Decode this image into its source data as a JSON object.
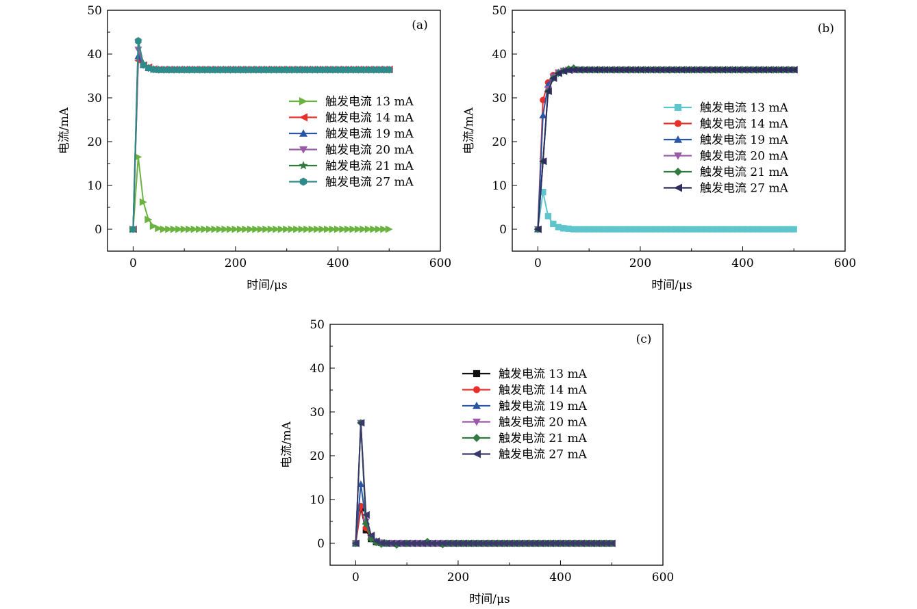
{
  "figure_title": "",
  "chart_data": [
    {
      "type": "line",
      "panel_label": "(a)",
      "xlabel": "时间/μs",
      "ylabel": "电流/mA",
      "xlim": [
        -50,
        600
      ],
      "ylim": [
        -5,
        50
      ],
      "xticks": [
        0,
        200,
        400,
        600
      ],
      "yticks": [
        0,
        10,
        20,
        30,
        40,
        50
      ],
      "grid": false,
      "legend_position": "center-right",
      "series": [
        {
          "name": "触发电流 13 mA",
          "color": "#6ab33f",
          "marker": "triangle-right",
          "x": [
            0,
            10,
            20,
            30,
            40,
            50
          ],
          "y": [
            0,
            16.5,
            6.2,
            2.2,
            0.7,
            0.2
          ],
          "tail_value": 0
        },
        {
          "name": "触发电流 14 mA",
          "color": "#e8302a",
          "marker": "triangle-left",
          "x": [
            0,
            10,
            20,
            30,
            40,
            50
          ],
          "y": [
            0,
            38.5,
            37.5,
            37.0,
            36.6,
            36.5
          ],
          "tail_value": 36.5
        },
        {
          "name": "触发电流 19 mA",
          "color": "#2a55a3",
          "marker": "triangle-up",
          "x": [
            0,
            10,
            20,
            30,
            40,
            50
          ],
          "y": [
            0,
            39.5,
            37.5,
            36.8,
            36.5,
            36.4
          ],
          "tail_value": 36.4
        },
        {
          "name": "触发电流 20 mA",
          "color": "#9a5aa8",
          "marker": "triangle-down",
          "x": [
            0,
            10,
            20,
            30,
            40,
            50
          ],
          "y": [
            0,
            41.0,
            37.5,
            36.8,
            36.5,
            36.4
          ],
          "tail_value": 36.4
        },
        {
          "name": "触发电流 21 mA",
          "color": "#2f7a3c",
          "marker": "star",
          "x": [
            0,
            10,
            20,
            30,
            40,
            50
          ],
          "y": [
            0,
            43.0,
            37.8,
            36.8,
            36.5,
            36.4
          ],
          "tail_value": 36.4
        },
        {
          "name": "触发电流 27 mA",
          "color": "#2f8a8a",
          "marker": "hexagon",
          "x": [
            0,
            10,
            20,
            30,
            40,
            50
          ],
          "y": [
            0,
            43.0,
            37.5,
            36.8,
            36.5,
            36.4
          ],
          "tail_value": 36.4
        }
      ]
    },
    {
      "type": "line",
      "panel_label": "(b)",
      "xlabel": "时间/μs",
      "ylabel": "电流/mA",
      "xlim": [
        -50,
        600
      ],
      "ylim": [
        -5,
        50
      ],
      "xticks": [
        0,
        200,
        400,
        600
      ],
      "yticks": [
        0,
        10,
        20,
        30,
        40,
        50
      ],
      "grid": false,
      "legend_position": "center-right",
      "series": [
        {
          "name": "触发电流 13 mA",
          "color": "#5ec5cc",
          "marker": "square",
          "x": [
            0,
            10,
            20,
            30,
            40,
            50,
            60,
            70
          ],
          "y": [
            0,
            8.5,
            3.0,
            1.2,
            0.5,
            0.2,
            0.1,
            0.0
          ],
          "tail_value": 0
        },
        {
          "name": "触发电流 14 mA",
          "color": "#e8302a",
          "marker": "circle",
          "x": [
            0,
            10,
            20,
            30,
            40,
            50,
            60,
            70
          ],
          "y": [
            0,
            29.5,
            33.5,
            35.2,
            35.8,
            36.2,
            36.4,
            36.4
          ],
          "tail_value": 36.4
        },
        {
          "name": "触发电流 19 mA",
          "color": "#2a55a3",
          "marker": "triangle-up",
          "x": [
            0,
            10,
            20,
            30,
            40,
            50,
            60,
            70
          ],
          "y": [
            0,
            26.0,
            33.0,
            35.0,
            35.8,
            36.2,
            36.4,
            36.4
          ],
          "tail_value": 36.4
        },
        {
          "name": "触发电流 20 mA",
          "color": "#9a5aa8",
          "marker": "triangle-down",
          "x": [
            0,
            10,
            20,
            30,
            40,
            50,
            60,
            70
          ],
          "y": [
            0,
            15.5,
            32.0,
            34.8,
            35.8,
            36.2,
            36.4,
            36.4
          ],
          "tail_value": 36.4
        },
        {
          "name": "触发电流 21 mA",
          "color": "#2f7a3c",
          "marker": "diamond",
          "x": [
            0,
            10,
            20,
            30,
            40,
            50,
            60,
            70
          ],
          "y": [
            0,
            15.5,
            31.5,
            34.5,
            35.6,
            36.2,
            36.6,
            36.8
          ],
          "tail_value": 36.4
        },
        {
          "name": "触发电流 27 mA",
          "color": "#2e2e5e",
          "marker": "triangle-left",
          "x": [
            0,
            10,
            20,
            30,
            40,
            50,
            60,
            70
          ],
          "y": [
            0,
            15.5,
            31.5,
            34.5,
            35.6,
            36.1,
            36.3,
            36.4
          ],
          "tail_value": 36.4
        }
      ]
    },
    {
      "type": "line",
      "panel_label": "(c)",
      "xlabel": "时间/μs",
      "ylabel": "电流/mA",
      "xlim": [
        -50,
        600
      ],
      "ylim": [
        -5,
        50
      ],
      "xticks": [
        0,
        200,
        400,
        600
      ],
      "yticks": [
        0,
        10,
        20,
        30,
        40,
        50
      ],
      "grid": false,
      "legend_position": "top-center",
      "series": [
        {
          "name": "触发电流 13 mA",
          "color": "#111111",
          "marker": "square",
          "x": [
            0,
            10,
            20,
            30,
            40,
            50,
            60
          ],
          "y": [
            0,
            8.0,
            3.0,
            1.0,
            0.3,
            0.1,
            0.0
          ],
          "tail_value": 0
        },
        {
          "name": "触发电流 14 mA",
          "color": "#e8302a",
          "marker": "circle",
          "x": [
            0,
            10,
            20,
            30,
            40,
            50,
            60
          ],
          "y": [
            0,
            8.5,
            3.5,
            1.2,
            0.4,
            0.1,
            0.0
          ],
          "tail_value": 0
        },
        {
          "name": "触发电流 19 mA",
          "color": "#2a55a3",
          "marker": "triangle-up",
          "x": [
            0,
            10,
            20,
            30,
            40,
            50,
            60
          ],
          "y": [
            0,
            13.5,
            5.0,
            1.5,
            0.5,
            0.1,
            0.0
          ],
          "tail_value": 0
        },
        {
          "name": "触发电流 20 mA",
          "color": "#9a5aa8",
          "marker": "triangle-down",
          "x": [
            0,
            10,
            20,
            30,
            40,
            50,
            60
          ],
          "y": [
            0,
            27.5,
            5.0,
            1.2,
            0.3,
            0.1,
            0.0
          ],
          "tail_value": 0
        },
        {
          "name": "触发电流 21 mA",
          "color": "#2f7a3c",
          "marker": "diamond",
          "x": [
            0,
            10,
            20,
            30,
            40,
            50,
            60,
            80,
            100,
            140,
            170
          ],
          "y": [
            0,
            27.5,
            4.5,
            1.0,
            0.2,
            -0.2,
            0.0,
            -0.4,
            0.0,
            0.4,
            -0.3
          ],
          "tail_value": 0
        },
        {
          "name": "触发电流 27 mA",
          "color": "#3a3a6a",
          "marker": "triangle-left",
          "x": [
            0,
            10,
            20,
            30,
            40,
            50,
            60
          ],
          "y": [
            0,
            27.5,
            6.5,
            1.8,
            0.5,
            0.1,
            0.0
          ],
          "tail_value": 0
        }
      ]
    }
  ]
}
